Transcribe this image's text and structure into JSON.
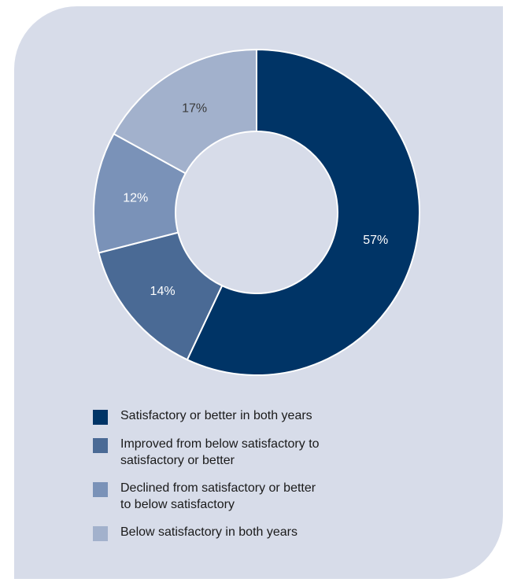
{
  "chart_data": {
    "type": "pie",
    "donut": true,
    "categories": [
      "Satisfactory or better in both years",
      "Improved from below satisfactory to satisfactory or better",
      "Declined from satisfactory or better to below satisfactory",
      "Below satisfactory in both years"
    ],
    "values": [
      57,
      14,
      12,
      17
    ],
    "value_labels": [
      "57%",
      "14%",
      "12%",
      "17%"
    ],
    "colors": [
      "#003466",
      "#4a6a95",
      "#7a92b8",
      "#a2b1cc"
    ],
    "legend_position": "bottom"
  },
  "legend": {
    "lines": [
      [
        "Satisfactory or better in both years"
      ],
      [
        "Improved from below satisfactory to",
        "satisfactory or better"
      ],
      [
        "Declined from satisfactory or better",
        "to below satisfactory"
      ],
      [
        "Below satisfactory in both years"
      ]
    ]
  }
}
